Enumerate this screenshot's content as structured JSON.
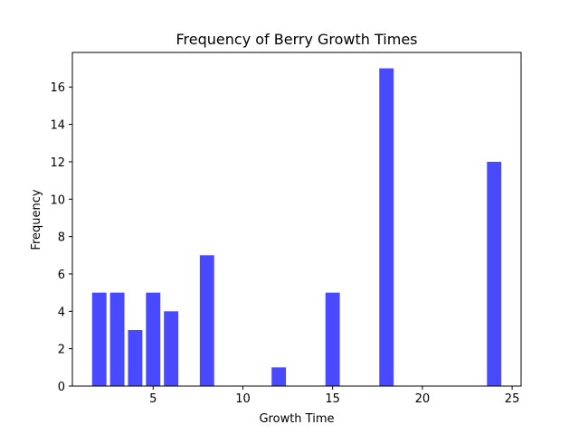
{
  "chart_data": {
    "type": "bar",
    "title": "Frequency of Berry Growth Times",
    "xlabel": "Growth Time",
    "ylabel": "Frequency",
    "x": [
      2,
      3,
      4,
      5,
      6,
      8,
      12,
      15,
      18,
      24
    ],
    "values": [
      5,
      5,
      3,
      5,
      4,
      7,
      1,
      5,
      17,
      12
    ],
    "xlim": [
      0.5,
      25.5
    ],
    "ylim": [
      0,
      17.85
    ],
    "xticks": [
      5,
      10,
      15,
      20,
      25
    ],
    "yticks": [
      0,
      2,
      4,
      6,
      8,
      10,
      12,
      14,
      16
    ],
    "bar_width": 0.8,
    "bar_color": "#4949fe",
    "grid": false
  }
}
